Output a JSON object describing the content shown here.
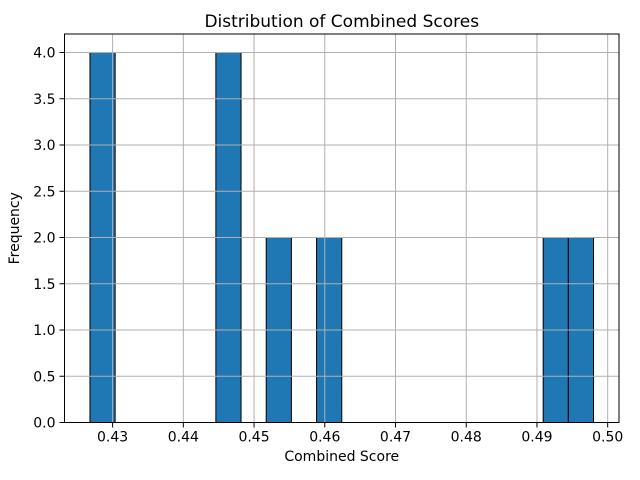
{
  "figure": {
    "background": "#ffffff"
  },
  "chart_data": {
    "type": "bar",
    "subtype": "histogram",
    "title": "Distribution of Combined Scores",
    "xlabel": "Combined Score",
    "ylabel": "Frequency",
    "bars": [
      {
        "x0": 0.4268,
        "x1": 0.43036,
        "frequency": 4
      },
      {
        "x0": 0.4446,
        "x1": 0.44816,
        "frequency": 4
      },
      {
        "x0": 0.45172,
        "x1": 0.45528,
        "frequency": 2
      },
      {
        "x0": 0.45884,
        "x1": 0.4624,
        "frequency": 2
      },
      {
        "x0": 0.49088,
        "x1": 0.49444,
        "frequency": 2
      },
      {
        "x0": 0.49444,
        "x1": 0.498,
        "frequency": 2
      }
    ],
    "bin_width": 0.00356,
    "total_count": 16,
    "xticks": [
      0.43,
      0.44,
      0.45,
      0.46,
      0.47,
      0.48,
      0.49,
      0.5
    ],
    "yticks": [
      0.0,
      0.5,
      1.0,
      1.5,
      2.0,
      2.5,
      3.0,
      3.5,
      4.0
    ],
    "xlim": [
      0.4232,
      0.5016
    ],
    "ylim": [
      0,
      4.2
    ],
    "grid": true,
    "grid_above_bars": true,
    "legend": false,
    "colors": {
      "bar_fill": "#1f77b4",
      "bar_edge": "#000000",
      "grid": "#b0b0b0",
      "axis": "#000000",
      "text": "#000000",
      "background": "#ffffff"
    }
  }
}
